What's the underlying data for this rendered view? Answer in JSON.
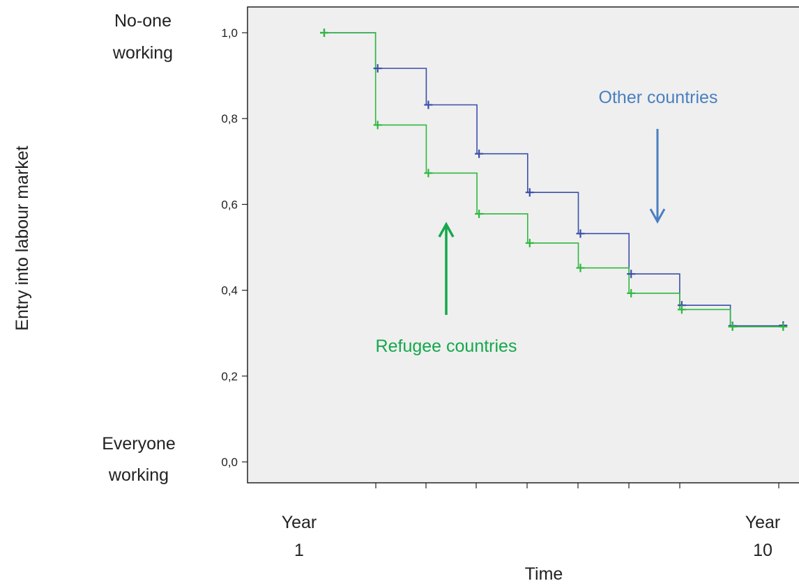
{
  "chart_data": {
    "type": "line",
    "title": "",
    "xlabel": "Time",
    "ylabel": "Entry into labour market",
    "ylim": [
      0,
      1.0
    ],
    "y_ticks": [
      {
        "value": 0.0,
        "label": "0,0"
      },
      {
        "value": 0.2,
        "label": "0,2"
      },
      {
        "value": 0.4,
        "label": "0,4"
      },
      {
        "value": 0.6,
        "label": "0,6"
      },
      {
        "value": 0.8,
        "label": "0,8"
      },
      {
        "value": 1.0,
        "label": "1,0"
      }
    ],
    "y_end_labels": {
      "top": [
        "No-one",
        "working"
      ],
      "bottom": [
        "Everyone",
        "working"
      ]
    },
    "x_end_labels": {
      "start": [
        "Year",
        "1"
      ],
      "end": [
        "Year",
        "10"
      ]
    },
    "x": [
      1,
      2,
      3,
      4,
      5,
      6,
      7,
      8,
      9,
      10
    ],
    "series": [
      {
        "name": "Other countries",
        "color": "#3a4fa8",
        "label_color": "#4a7fc0",
        "step": true,
        "values": [
          1.0,
          0.917,
          0.832,
          0.718,
          0.628,
          0.532,
          0.438,
          0.365,
          0.317,
          0.318
        ]
      },
      {
        "name": "Refugee countries",
        "color": "#2db83d",
        "label_color": "#15a84c",
        "step": true,
        "values": [
          1.0,
          0.785,
          0.673,
          0.578,
          0.51,
          0.452,
          0.393,
          0.355,
          0.315,
          0.315
        ]
      }
    ],
    "grid": false,
    "background": "#efefef"
  }
}
